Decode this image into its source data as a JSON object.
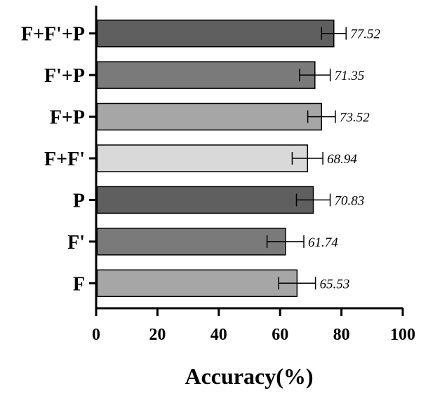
{
  "chart_data": {
    "type": "bar",
    "orientation": "horizontal",
    "title": "",
    "xlabel": "Accuracy(%)",
    "ylabel": "",
    "xlim": [
      0,
      100
    ],
    "xticks": [
      0,
      20,
      40,
      60,
      80,
      100
    ],
    "grid": false,
    "legend": "none",
    "categories": [
      "F+F'+P",
      "F'+P",
      "F+P",
      "F+F'",
      "P",
      "F'",
      "F"
    ],
    "values": [
      77.52,
      71.35,
      73.52,
      68.94,
      70.83,
      61.74,
      65.53
    ],
    "value_labels": [
      "77.52",
      "71.35",
      "73.52",
      "68.94",
      "70.83",
      "61.74",
      "65.53"
    ],
    "errors": [
      4.0,
      5.0,
      4.5,
      5.0,
      5.5,
      6.0,
      6.0
    ],
    "colors": [
      "#5f5f5f",
      "#7a7a7a",
      "#a6a6a6",
      "#d9d9d9",
      "#5f5f5f",
      "#7a7a7a",
      "#a6a6a6"
    ]
  }
}
